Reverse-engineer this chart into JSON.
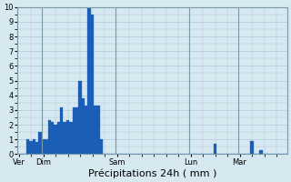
{
  "title": "",
  "xlabel": "Précipitations 24h ( mm )",
  "ylabel": "",
  "ylim": [
    0,
    10
  ],
  "background_color": "#d6e8f0",
  "plot_bg_color": "#d6e8f0",
  "bar_color": "#1a5eb8",
  "bar_edge_color": "#1a5eb8",
  "grid_color": "#b0c8d8",
  "xlabel_fontsize": 8,
  "ytick_fontsize": 6,
  "xtick_fontsize": 6,
  "values": [
    0.0,
    0.0,
    0.0,
    1.0,
    0.9,
    1.0,
    0.8,
    1.5,
    1.0,
    1.0,
    2.3,
    2.2,
    2.0,
    2.2,
    3.2,
    2.2,
    2.3,
    2.2,
    3.2,
    3.2,
    5.0,
    3.8,
    3.3,
    10.0,
    9.5,
    3.3,
    3.3,
    1.0,
    0.0,
    0.0,
    0.0,
    0.0,
    0.0,
    0.0,
    0.0,
    0.0,
    0.0,
    0.0,
    0.0,
    0.0,
    0.0,
    0.0,
    0.0,
    0.0,
    0.0,
    0.0,
    0.0,
    0.0,
    0.0,
    0.0,
    0.0,
    0.0,
    0.0,
    0.0,
    0.0,
    0.0,
    0.0,
    0.0,
    0.0,
    0.0,
    0.0,
    0.0,
    0.0,
    0.0,
    0.7,
    0.0,
    0.0,
    0.0,
    0.0,
    0.0,
    0.0,
    0.0,
    0.0,
    0.0,
    0.0,
    0.0,
    0.9,
    0.0,
    0.0,
    0.3,
    0.0,
    0.0,
    0.0,
    0.0,
    0.0,
    0.0,
    0.0,
    0.0
  ],
  "day_tick_positions": [
    0,
    8,
    32,
    56,
    72
  ],
  "day_labels": [
    "Ver",
    "Dim",
    "Sam",
    "Lun",
    "Mar"
  ]
}
